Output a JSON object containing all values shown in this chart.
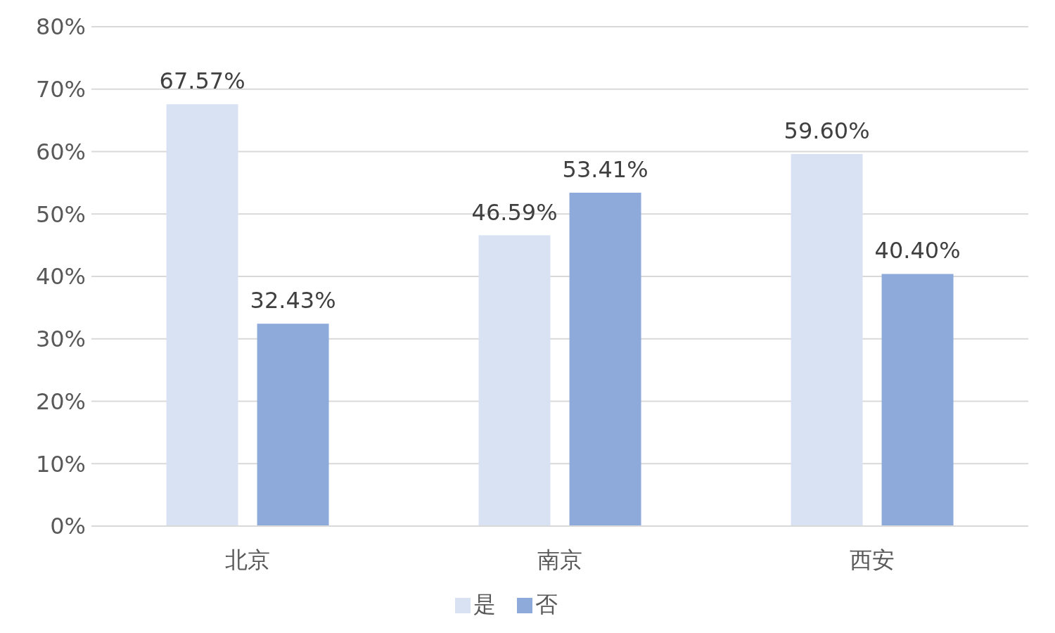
{
  "chart_data": {
    "type": "bar",
    "categories": [
      "北京",
      "南京",
      "西安"
    ],
    "series": [
      {
        "name": "是",
        "color": "#d9e2f3",
        "values": [
          67.57,
          46.59,
          59.6
        ],
        "value_labels": [
          "67.57%",
          "46.59%",
          "59.60%"
        ]
      },
      {
        "name": "否",
        "color": "#8eaadb",
        "values": [
          32.43,
          53.41,
          40.4
        ],
        "value_labels": [
          "32.43%",
          "53.41%",
          "40.40%"
        ]
      }
    ],
    "ylim": [
      0,
      80
    ],
    "yticks": [
      {
        "value": 0,
        "label": "0%"
      },
      {
        "value": 10,
        "label": "10%"
      },
      {
        "value": 20,
        "label": "20%"
      },
      {
        "value": 30,
        "label": "30%"
      },
      {
        "value": 40,
        "label": "40%"
      },
      {
        "value": 50,
        "label": "50%"
      },
      {
        "value": 60,
        "label": "60%"
      },
      {
        "value": 70,
        "label": "70%"
      },
      {
        "value": 80,
        "label": "80%"
      }
    ],
    "grid": "y",
    "legend": "bottom"
  }
}
